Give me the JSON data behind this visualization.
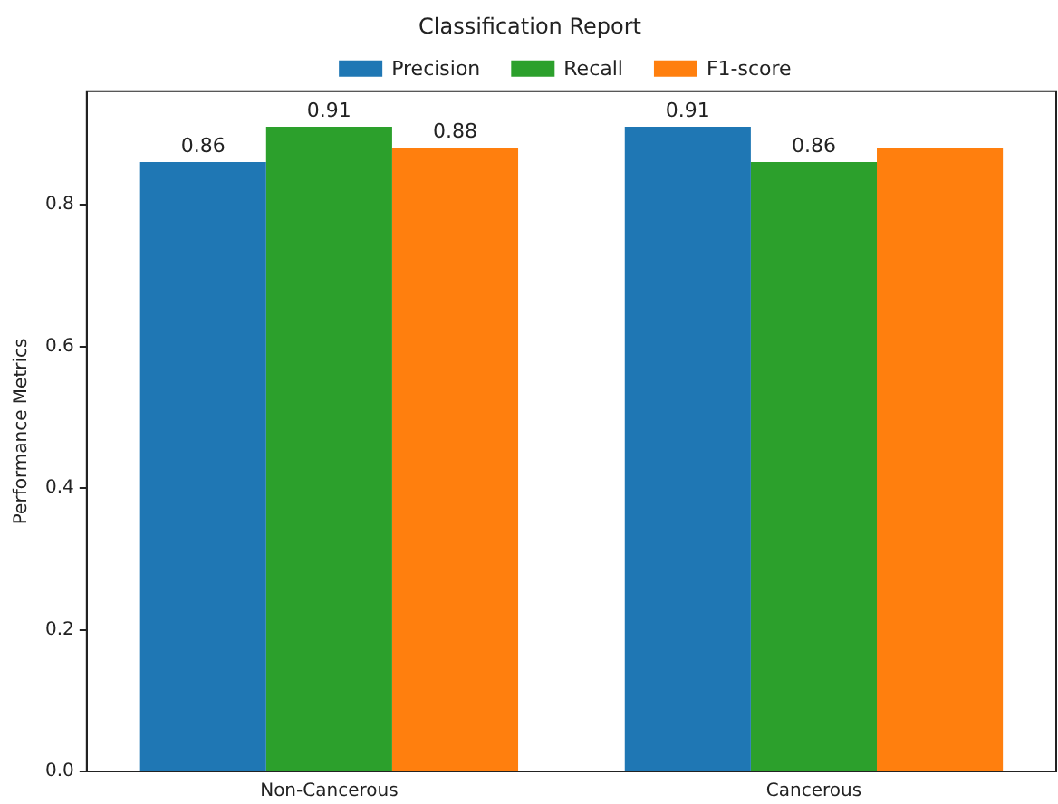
{
  "chart_data": {
    "type": "bar",
    "title": "Classification Report",
    "ylabel": "Performance Metrics",
    "categories": [
      "Non-Cancerous",
      "Cancerous"
    ],
    "series": [
      {
        "name": "Precision",
        "color": "#1f77b4",
        "values": [
          0.86,
          0.91
        ],
        "value_labels": [
          "0.86",
          "0.91"
        ]
      },
      {
        "name": "Recall",
        "color": "#2ca02c",
        "values": [
          0.91,
          0.86
        ],
        "value_labels": [
          "0.91",
          "0.86"
        ]
      },
      {
        "name": "F1-score",
        "color": "#ff7f0e",
        "values": [
          0.88,
          0.88
        ],
        "value_labels": [
          "0.88",
          null
        ]
      }
    ],
    "ylim": [
      0,
      0.96
    ],
    "yticks": [
      {
        "value": 0,
        "label": "0.0"
      },
      0.2,
      0.4,
      0.6,
      0.8
    ],
    "grid": false,
    "legend": "top"
  }
}
